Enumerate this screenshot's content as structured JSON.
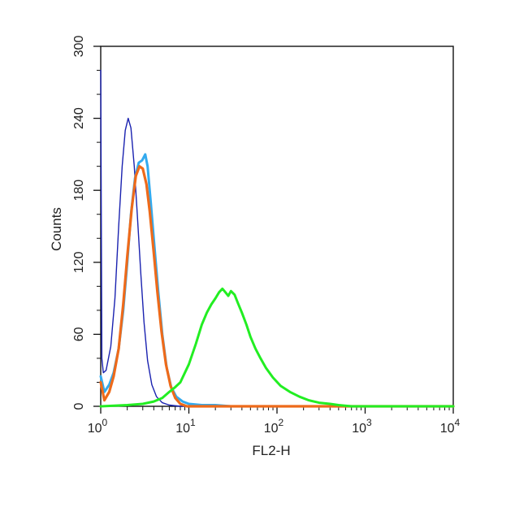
{
  "chart_data": {
    "type": "line",
    "title": "",
    "xlabel": "FL2-H",
    "ylabel": "Counts",
    "x_scale": "log",
    "xlim": [
      1,
      10000
    ],
    "ylim": [
      0,
      300
    ],
    "x_ticks": [
      {
        "value": 1,
        "base": "10",
        "exp": "0"
      },
      {
        "value": 10,
        "base": "10",
        "exp": "1"
      },
      {
        "value": 100,
        "base": "10",
        "exp": "2"
      },
      {
        "value": 1000,
        "base": "10",
        "exp": "3"
      },
      {
        "value": 10000,
        "base": "10",
        "exp": "4"
      }
    ],
    "y_ticks": [
      0,
      60,
      120,
      180,
      240,
      300
    ],
    "grid": false,
    "legend": "none",
    "series": [
      {
        "color": "#1a22b0",
        "values": [
          [
            1,
            280
          ],
          [
            1.03,
            40
          ],
          [
            1.07,
            28
          ],
          [
            1.15,
            30
          ],
          [
            1.3,
            50
          ],
          [
            1.45,
            90
          ],
          [
            1.6,
            150
          ],
          [
            1.75,
            200
          ],
          [
            1.9,
            230
          ],
          [
            2.05,
            240
          ],
          [
            2.2,
            232
          ],
          [
            2.4,
            200
          ],
          [
            2.6,
            160
          ],
          [
            2.85,
            110
          ],
          [
            3.1,
            70
          ],
          [
            3.4,
            38
          ],
          [
            3.8,
            18
          ],
          [
            4.3,
            8
          ],
          [
            5,
            3
          ],
          [
            6,
            1
          ],
          [
            8,
            0
          ],
          [
            10000,
            0
          ]
        ]
      },
      {
        "color": "#33aaee",
        "values": [
          [
            1,
            25
          ],
          [
            1.1,
            12
          ],
          [
            1.25,
            18
          ],
          [
            1.4,
            28
          ],
          [
            1.6,
            48
          ],
          [
            1.8,
            80
          ],
          [
            2.0,
            120
          ],
          [
            2.2,
            160
          ],
          [
            2.45,
            190
          ],
          [
            2.7,
            203
          ],
          [
            2.95,
            205
          ],
          [
            3.2,
            210
          ],
          [
            3.4,
            200
          ],
          [
            3.7,
            170
          ],
          [
            4.1,
            130
          ],
          [
            4.5,
            95
          ],
          [
            5.0,
            60
          ],
          [
            5.6,
            32
          ],
          [
            6.3,
            16
          ],
          [
            7.2,
            8
          ],
          [
            8.5,
            4
          ],
          [
            10,
            2
          ],
          [
            14,
            1
          ],
          [
            20,
            1
          ],
          [
            30,
            0
          ],
          [
            10000,
            0
          ]
        ]
      },
      {
        "color": "#ee6a1a",
        "values": [
          [
            1,
            20
          ],
          [
            1.1,
            5
          ],
          [
            1.25,
            12
          ],
          [
            1.4,
            25
          ],
          [
            1.6,
            48
          ],
          [
            1.8,
            85
          ],
          [
            2.0,
            125
          ],
          [
            2.25,
            165
          ],
          [
            2.5,
            192
          ],
          [
            2.75,
            200
          ],
          [
            3.0,
            198
          ],
          [
            3.3,
            185
          ],
          [
            3.6,
            162
          ],
          [
            4.0,
            128
          ],
          [
            4.4,
            95
          ],
          [
            4.9,
            62
          ],
          [
            5.5,
            35
          ],
          [
            6.2,
            17
          ],
          [
            7.0,
            7
          ],
          [
            8.0,
            2
          ],
          [
            9.5,
            0
          ],
          [
            10000,
            0
          ]
        ]
      },
      {
        "color": "#22ee22",
        "values": [
          [
            1,
            0
          ],
          [
            2,
            1
          ],
          [
            3,
            2
          ],
          [
            4,
            4
          ],
          [
            5,
            7
          ],
          [
            6,
            12
          ],
          [
            7,
            16
          ],
          [
            8,
            20
          ],
          [
            10,
            35
          ],
          [
            12,
            52
          ],
          [
            14,
            68
          ],
          [
            16,
            78
          ],
          [
            18,
            85
          ],
          [
            20,
            90
          ],
          [
            22,
            95
          ],
          [
            24,
            98
          ],
          [
            26,
            95
          ],
          [
            28,
            92
          ],
          [
            30,
            96
          ],
          [
            33,
            93
          ],
          [
            36,
            86
          ],
          [
            40,
            78
          ],
          [
            45,
            68
          ],
          [
            50,
            58
          ],
          [
            57,
            48
          ],
          [
            65,
            40
          ],
          [
            75,
            32
          ],
          [
            90,
            24
          ],
          [
            110,
            17
          ],
          [
            140,
            12
          ],
          [
            180,
            8
          ],
          [
            230,
            5
          ],
          [
            300,
            3
          ],
          [
            400,
            2
          ],
          [
            500,
            1
          ],
          [
            700,
            0
          ],
          [
            10000,
            0
          ]
        ]
      }
    ]
  }
}
